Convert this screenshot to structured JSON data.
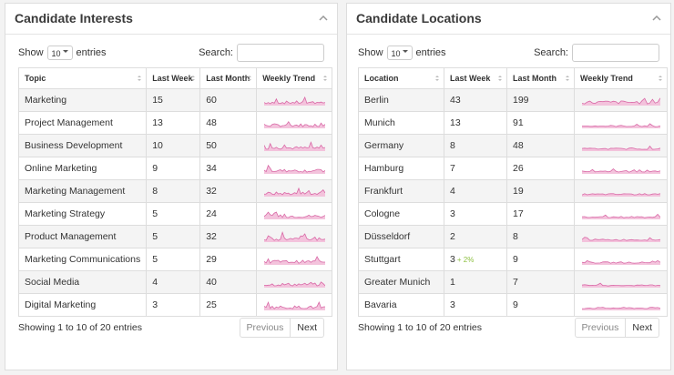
{
  "panels": [
    {
      "title": "Candidate Interests",
      "show_label": "Show",
      "page_size": 10,
      "entries_label": "entries",
      "search_label": "Search:",
      "columns": [
        "Topic",
        "Last Week",
        "Last Month",
        "Weekly Trend"
      ],
      "rows": [
        {
          "name": "Marketing",
          "last_week": 15,
          "last_month": 60
        },
        {
          "name": "Project Management",
          "last_week": 13,
          "last_month": 48
        },
        {
          "name": "Business Development",
          "last_week": 10,
          "last_month": 50
        },
        {
          "name": "Online Marketing",
          "last_week": 9,
          "last_month": 34
        },
        {
          "name": "Marketing Management",
          "last_week": 8,
          "last_month": 32
        },
        {
          "name": "Marketing Strategy",
          "last_week": 5,
          "last_month": 24
        },
        {
          "name": "Product Management",
          "last_week": 5,
          "last_month": 32
        },
        {
          "name": "Marketing Communications",
          "last_week": 5,
          "last_month": 29
        },
        {
          "name": "Social Media",
          "last_week": 4,
          "last_month": 40
        },
        {
          "name": "Digital Marketing",
          "last_week": 3,
          "last_month": 25
        }
      ],
      "info": "Showing 1 to 10 of 20 entries",
      "prev": "Previous",
      "next": "Next"
    },
    {
      "title": "Candidate Locations",
      "show_label": "Show",
      "page_size": 10,
      "entries_label": "entries",
      "search_label": "Search:",
      "columns": [
        "Location",
        "Last Week",
        "Last Month",
        "Weekly Trend"
      ],
      "rows": [
        {
          "name": "Berlin",
          "last_week": 43,
          "last_month": 199
        },
        {
          "name": "Munich",
          "last_week": 13,
          "last_month": 91
        },
        {
          "name": "Germany",
          "last_week": 8,
          "last_month": 48
        },
        {
          "name": "Hamburg",
          "last_week": 7,
          "last_month": 26
        },
        {
          "name": "Frankfurt",
          "last_week": 4,
          "last_month": 19
        },
        {
          "name": "Cologne",
          "last_week": 3,
          "last_month": 17
        },
        {
          "name": "Düsseldorf",
          "last_week": 2,
          "last_month": 8
        },
        {
          "name": "Stuttgart",
          "last_week": 3,
          "change": "+ 2%",
          "last_month": 9
        },
        {
          "name": "Greater Munich",
          "last_week": 1,
          "last_month": 7
        },
        {
          "name": "Bavaria",
          "last_week": 3,
          "last_month": 9
        }
      ],
      "info": "Showing 1 to 10 of 20 entries",
      "prev": "Previous",
      "next": "Next"
    }
  ]
}
